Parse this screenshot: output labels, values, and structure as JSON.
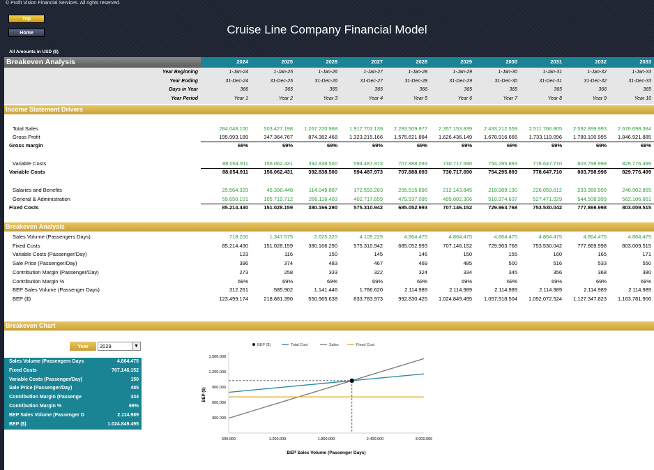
{
  "copyright": "© Profit Vision Financial Services. All rights reserved.",
  "nav": {
    "top": "Top",
    "home": "Home"
  },
  "title": "Cruise Line Company Financial Model",
  "amounts": "All Amounts in  USD ($)",
  "section_header": "Breakeven Analysis",
  "years": [
    "2024",
    "2025",
    "2026",
    "2027",
    "2028",
    "2029",
    "2030",
    "2031",
    "2032",
    "2033"
  ],
  "timeline": [
    {
      "label": "Year Beginning",
      "values": [
        "1-Jan-24",
        "1-Jan-25",
        "1-Jan-26",
        "1-Jan-27",
        "1-Jan-28",
        "1-Jan-29",
        "1-Jan-30",
        "1-Jan-31",
        "1-Jan-32",
        "1-Jan-33"
      ]
    },
    {
      "label": "Year Ending",
      "values": [
        "31-Dec-24",
        "31-Dec-25",
        "31-Dec-26",
        "31-Dec-27",
        "31-Dec-28",
        "31-Dec-29",
        "31-Dec-30",
        "31-Dec-31",
        "31-Dec-32",
        "31-Dec-33"
      ]
    },
    {
      "label": "Days in Year",
      "values": [
        "366",
        "365",
        "365",
        "365",
        "366",
        "365",
        "365",
        "365",
        "366",
        "365"
      ]
    },
    {
      "label": "Year Period",
      "values": [
        "Year 1",
        "Year 2",
        "Year 3",
        "Year 4",
        "Year 5",
        "Year 6",
        "Year 7",
        "Year 8",
        "Year 9",
        "Year 10"
      ]
    }
  ],
  "income_title": "Income Statement Drivers",
  "income": [
    {
      "label": "Total Sales",
      "style": "green",
      "indent": true,
      "values": [
        "284.048.100",
        "503.427.198",
        "1.267.220.968",
        "1.917.703.139",
        "2.283.509.977",
        "2.357.153.839",
        "2.433.212.559",
        "2.511.766.805",
        "2.592.899.993",
        "2.676.698.384"
      ]
    },
    {
      "label": "Gross Profit",
      "style": "",
      "indent": true,
      "values": [
        "195.993.189",
        "347.364.767",
        "874.382.468",
        "1.323.215.166",
        "1.575.621.884",
        "1.626.436.149",
        "1.678.916.666",
        "1.733.119.096",
        "1.789.100.995",
        "1.846.921.885"
      ]
    },
    {
      "label": "Gross margin",
      "style": "bold",
      "indent": false,
      "line": true,
      "values": [
        "69%",
        "69%",
        "69%",
        "69%",
        "69%",
        "69%",
        "69%",
        "69%",
        "69%",
        "69%"
      ]
    },
    {
      "label": "Variable Costs",
      "style": "green",
      "indent": true,
      "values": [
        "88.054.911",
        "156.062.431",
        "392.838.500",
        "594.487.973",
        "707.888.093",
        "730.717.690",
        "754.295.893",
        "778.647.710",
        "803.798.998",
        "829.776.499"
      ]
    },
    {
      "label": "Variable Costs",
      "style": "bold",
      "indent": false,
      "line": true,
      "values": [
        "88.054.911",
        "156.062.431",
        "392.838.500",
        "594.487.973",
        "707.888.093",
        "730.717.690",
        "754.295.893",
        "778.647.710",
        "803.798.998",
        "829.776.499"
      ]
    },
    {
      "label": "Salaries and Benefits",
      "style": "green",
      "indent": true,
      "values": [
        "25.564.329",
        "45.308.448",
        "114.049.887",
        "172.593.283",
        "205.515.898",
        "212.143.845",
        "218.989.130",
        "226.059.012",
        "233.360.999",
        "240.902.855"
      ]
    },
    {
      "label": "General & Administration",
      "style": "green",
      "indent": true,
      "values": [
        "59.650.101",
        "105.719.712",
        "266.116.403",
        "402.717.659",
        "479.537.095",
        "495.002.306",
        "510.974.637",
        "527.471.029",
        "544.508.999",
        "562.106.661"
      ]
    },
    {
      "label": "Fixed Costs",
      "style": "bold",
      "indent": false,
      "line": true,
      "values": [
        "85.214.430",
        "151.028.159",
        "380.166.290",
        "575.310.942",
        "685.052.993",
        "707.146.152",
        "729.963.768",
        "753.530.042",
        "777.869.998",
        "803.009.515"
      ]
    }
  ],
  "breakeven_title": "Breakeven Analysis",
  "breakeven": [
    {
      "label": "Sales Volume (Passengers Days)",
      "style": "green",
      "values": [
        "718.200",
        "1.347.575",
        "2.625.325",
        "4.109.225",
        "4.864.475",
        "4.864.475",
        "4.864.475",
        "4.864.475",
        "4.864.475",
        "4.864.475"
      ]
    },
    {
      "label": "Fixed Costs",
      "style": "",
      "values": [
        "85.214.430",
        "151.028.159",
        "380.166.290",
        "575.310.942",
        "685.052.993",
        "707.146.152",
        "729.963.768",
        "753.530.042",
        "777.869.998",
        "803.009.515"
      ]
    },
    {
      "label": "Variable Costs (Passenger/Day)",
      "style": "",
      "values": [
        "123",
        "116",
        "150",
        "145",
        "146",
        "150",
        "155",
        "160",
        "165",
        "171"
      ]
    },
    {
      "label": "Sale Price (Passenger/Day)",
      "style": "",
      "values": [
        "396",
        "374",
        "483",
        "467",
        "469",
        "485",
        "500",
        "516",
        "533",
        "550"
      ]
    },
    {
      "label": "Contribution Margin (Passenger/Day)",
      "style": "",
      "values": [
        "273",
        "258",
        "333",
        "322",
        "324",
        "334",
        "345",
        "356",
        "368",
        "380"
      ]
    },
    {
      "label": "Contribution Margin %",
      "style": "",
      "values": [
        "69%",
        "69%",
        "69%",
        "69%",
        "69%",
        "69%",
        "69%",
        "69%",
        "69%",
        "69%"
      ]
    },
    {
      "label": "BEP Sales Volume (Passenger Days)",
      "style": "",
      "values": [
        "312.261",
        "585.902",
        "1.141.446",
        "1.786.620",
        "2.114.989",
        "2.114.989",
        "2.114.989",
        "2.114.989",
        "2.114.989",
        "2.114.989"
      ]
    },
    {
      "label": "BEP ($)",
      "style": "",
      "values": [
        "123.499.174",
        "218.881.390",
        "550.965.638",
        "833.783.973",
        "992.830.425",
        "1.024.849.495",
        "1.057.918.504",
        "1.092.072.524",
        "1.127.347.823",
        "1.163.781.906"
      ]
    }
  ],
  "chart_title": "Breakeven Chart",
  "year_selector": {
    "label": "Year",
    "value": "2029"
  },
  "summary": [
    {
      "label": "Sales Volume (Passengers Days",
      "value": "4.864.475"
    },
    {
      "label": "Fixed Costs",
      "value": "707.146.152"
    },
    {
      "label": "Variable Costs (Passenger/Day)",
      "value": "150"
    },
    {
      "label": "Sale Price (Passenger/Day)",
      "value": "485"
    },
    {
      "label": "Contribution Margin (Passenge",
      "value": "334"
    },
    {
      "label": "Contribution Margin %",
      "value": "69%"
    },
    {
      "label": "BEP Sales Volume (Passenger D",
      "value": "2.114.989"
    },
    {
      "label": "BEP ($)",
      "value": "1.024.849.495"
    }
  ],
  "colors": {
    "teal": "#1a8494",
    "gold": "#d4ad45",
    "total_cost": "#2e8ea0",
    "sales": "#808080",
    "fixed_cost": "#e0b030"
  },
  "chart_data": {
    "type": "line",
    "xlabel": "BEP Sales Volume (Passenger Days)",
    "ylabel": "BEP ($)",
    "xlim": [
      600000,
      3000000
    ],
    "ylim": [
      0,
      1500000
    ],
    "xticks": [
      "600.000",
      "1.200.000",
      "1.800.000",
      "2.400.000",
      "3.000.000"
    ],
    "xtick_values": [
      600000,
      1200000,
      1800000,
      2400000,
      3000000
    ],
    "yticks": [
      "300.000",
      "600.000",
      "900.000",
      "1.200.000",
      "1.500.000"
    ],
    "ytick_values": [
      300000,
      600000,
      900000,
      1200000,
      1500000
    ],
    "legend": [
      "BEP ($)",
      "Total Cost",
      "Sales",
      "Fixed Cost"
    ],
    "legend_position": "top",
    "series": [
      {
        "name": "Total Cost",
        "x": [
          600000,
          3000000
        ],
        "y": [
          797000,
          1157000
        ]
      },
      {
        "name": "Sales",
        "x": [
          600000,
          3000000
        ],
        "y": [
          291000,
          1455000
        ]
      },
      {
        "name": "Fixed Cost",
        "x": [
          600000,
          3000000
        ],
        "y": [
          707000,
          707000
        ]
      }
    ],
    "bep_point": {
      "x": 2114989,
      "y": 1024849
    }
  }
}
